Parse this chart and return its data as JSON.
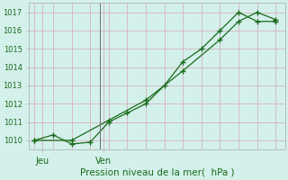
{
  "line1_x": [
    0,
    1,
    2,
    3,
    4,
    5,
    6,
    7,
    8,
    9,
    10,
    11,
    12,
    13
  ],
  "line1_y": [
    1010.0,
    1010.3,
    1009.8,
    1009.9,
    1011.0,
    1011.5,
    1012.0,
    1013.0,
    1014.3,
    1015.0,
    1016.0,
    1017.0,
    1016.5,
    1016.5
  ],
  "line2_x": [
    0,
    2,
    4,
    6,
    8,
    10,
    11,
    12,
    13
  ],
  "line2_y": [
    1010.0,
    1010.0,
    1011.1,
    1012.2,
    1013.8,
    1015.5,
    1016.5,
    1017.0,
    1016.6
  ],
  "ylim": [
    1009.5,
    1017.5
  ],
  "yticks": [
    1010,
    1011,
    1012,
    1013,
    1014,
    1015,
    1016,
    1017
  ],
  "xlabel": "Pression niveau de la mer(  hPa )",
  "line_color": "#1a6b1a",
  "bg_color": "#d4f0eb",
  "grid_color": "#d4a8b4",
  "tick_label_color": "#1a6b1a",
  "jeu_x": 0.4,
  "ven_x": 3.7,
  "jeu_label": "Jeu",
  "ven_label": "Ven",
  "vline_x": 3.5,
  "xlim": [
    -0.3,
    13.5
  ]
}
